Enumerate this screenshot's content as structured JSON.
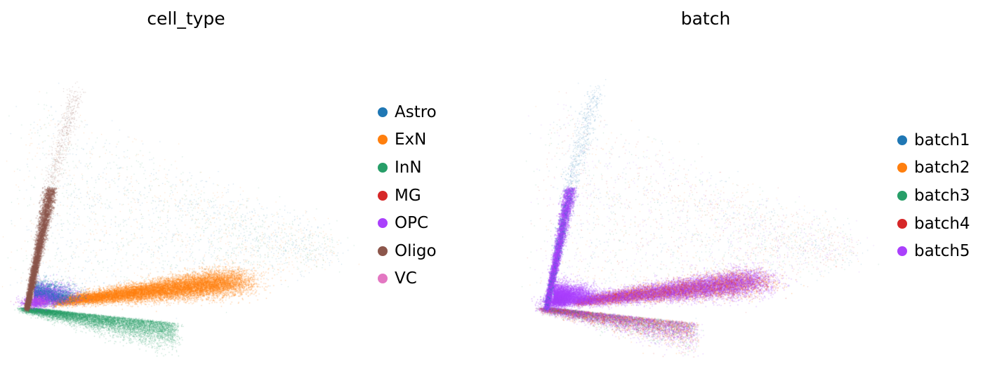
{
  "chart_data": [
    {
      "type": "scatter",
      "title": "cell_type",
      "xlabel": "",
      "ylabel": "",
      "grid": false,
      "axes_visible": false,
      "legend_placement": "right",
      "legend": [
        {
          "label": "Astro",
          "color": "#1f77b4"
        },
        {
          "label": "ExN",
          "color": "#ff7f0e"
        },
        {
          "label": "InN",
          "color": "#279e68"
        },
        {
          "label": "MG",
          "color": "#d62728"
        },
        {
          "label": "OPC",
          "color": "#aa40fc"
        },
        {
          "label": "Oligo",
          "color": "#8c564b"
        },
        {
          "label": "VC",
          "color": "#e377c2"
        }
      ]
    },
    {
      "type": "scatter",
      "title": "batch",
      "xlabel": "",
      "ylabel": "",
      "grid": false,
      "axes_visible": false,
      "legend_placement": "right",
      "legend": [
        {
          "label": "batch1",
          "color": "#1f77b4"
        },
        {
          "label": "batch2",
          "color": "#ff7f0e"
        },
        {
          "label": "batch3",
          "color": "#279e68"
        },
        {
          "label": "batch4",
          "color": "#d62728"
        },
        {
          "label": "batch5",
          "color": "#aa40fc"
        }
      ]
    }
  ]
}
